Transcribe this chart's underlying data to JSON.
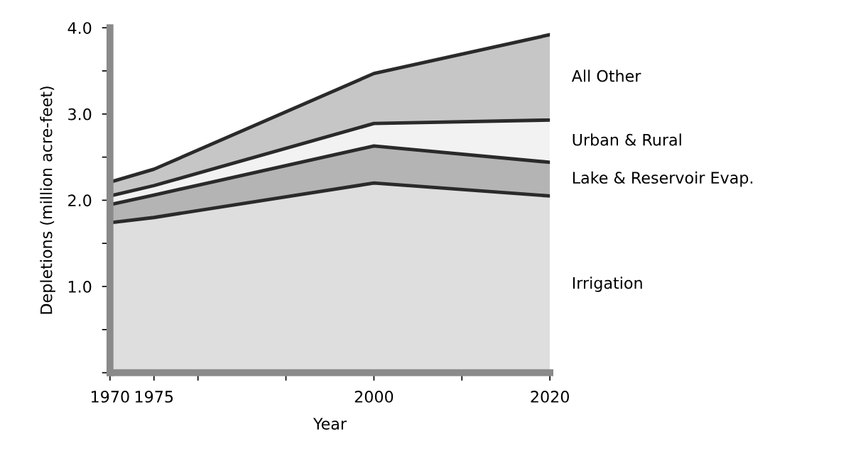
{
  "chart_data": {
    "type": "area",
    "stacked": true,
    "xlabel": "Year",
    "ylabel": "Depletions (million acre-feet)",
    "x": [
      1970,
      1975,
      2000,
      2020
    ],
    "series": [
      {
        "name": "Irrigation",
        "color": "#dedede",
        "values": [
          1.74,
          1.8,
          2.2,
          2.05
        ]
      },
      {
        "name": "Lake & Reservoir Evap.",
        "color": "#b4b4b4",
        "values": [
          0.21,
          0.26,
          0.43,
          0.39
        ]
      },
      {
        "name": "Urban & Rural",
        "color": "#f2f2f2",
        "values": [
          0.1,
          0.11,
          0.26,
          0.49
        ]
      },
      {
        "name": "All Other",
        "color": "#c6c6c6",
        "values": [
          0.16,
          0.19,
          0.58,
          0.99
        ]
      }
    ],
    "xlim": [
      1970,
      2020
    ],
    "ylim": [
      0,
      4.0
    ],
    "xticks": [
      1970,
      1975,
      {
        "value": 1980,
        "label": null
      },
      {
        "value": 1990,
        "label": null
      },
      2000,
      {
        "value": 2010,
        "label": null
      },
      2020
    ],
    "yticks": [
      {
        "value": 0,
        "label": null
      },
      {
        "value": 0.5,
        "label": null
      },
      {
        "value": 1.0,
        "label": "1.0"
      },
      {
        "value": 1.5,
        "label": null
      },
      {
        "value": 2.0,
        "label": "2.0"
      },
      {
        "value": 2.5,
        "label": null
      },
      {
        "value": 3.0,
        "label": "3.0"
      },
      {
        "value": 3.5,
        "label": null
      },
      {
        "value": 4.0,
        "label": "4.0"
      }
    ],
    "grid": false,
    "legend": false
  }
}
